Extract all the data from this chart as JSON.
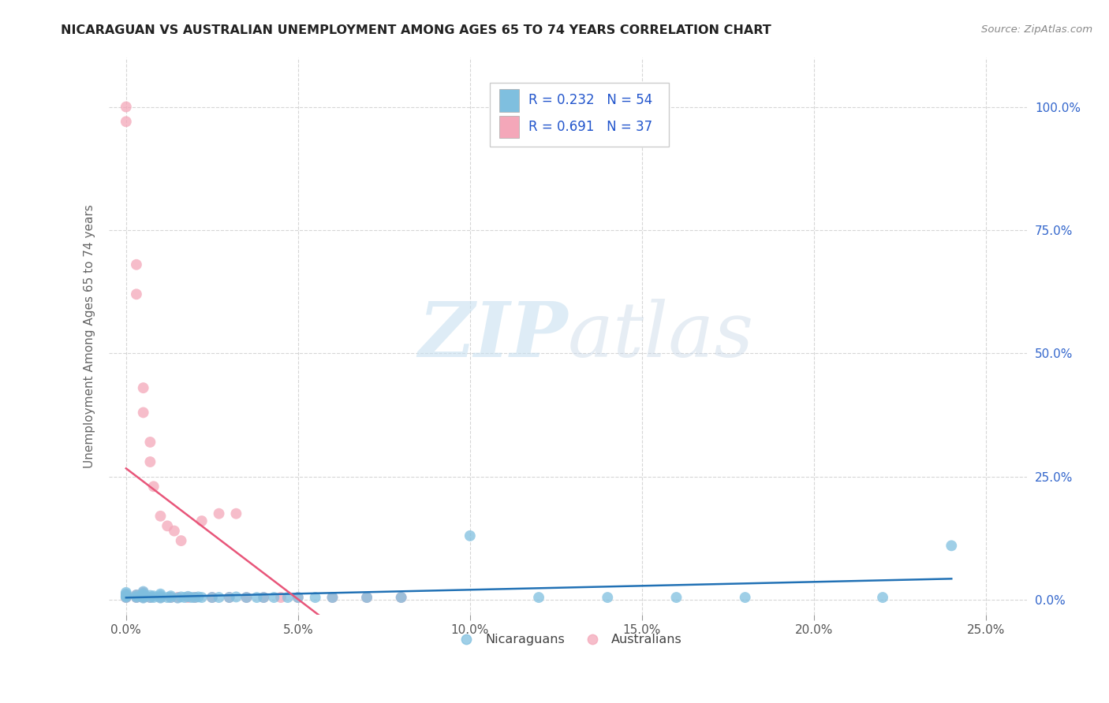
{
  "title": "NICARAGUAN VS AUSTRALIAN UNEMPLOYMENT AMONG AGES 65 TO 74 YEARS CORRELATION CHART",
  "source": "Source: ZipAtlas.com",
  "ylabel": "Unemployment Among Ages 65 to 74 years",
  "xlabel_ticks": [
    "0.0%",
    "5.0%",
    "10.0%",
    "15.0%",
    "20.0%",
    "25.0%"
  ],
  "xlabel_vals": [
    0.0,
    0.05,
    0.1,
    0.15,
    0.2,
    0.25
  ],
  "ylabel_ticks": [
    "0.0%",
    "25.0%",
    "50.0%",
    "75.0%",
    "100.0%"
  ],
  "ylabel_vals": [
    0.0,
    0.25,
    0.5,
    0.75,
    1.0
  ],
  "xlim": [
    -0.005,
    0.262
  ],
  "ylim": [
    -0.03,
    1.1
  ],
  "nicaraguan_color": "#7fbfdf",
  "australian_color": "#f4a7b9",
  "nicaraguan_line_color": "#2171b5",
  "australian_line_color": "#e8567a",
  "legend_R_nicaraguan": "0.232",
  "legend_N_nicaraguan": "54",
  "legend_R_australian": "0.691",
  "legend_N_australian": "37",
  "nicaraguan_x": [
    0.0,
    0.0,
    0.0,
    0.0,
    0.0,
    0.003,
    0.003,
    0.003,
    0.005,
    0.005,
    0.005,
    0.005,
    0.005,
    0.005,
    0.007,
    0.007,
    0.008,
    0.008,
    0.01,
    0.01,
    0.01,
    0.01,
    0.012,
    0.013,
    0.013,
    0.015,
    0.016,
    0.017,
    0.018,
    0.019,
    0.02,
    0.021,
    0.022,
    0.025,
    0.027,
    0.03,
    0.032,
    0.035,
    0.038,
    0.04,
    0.043,
    0.047,
    0.05,
    0.055,
    0.06,
    0.07,
    0.08,
    0.1,
    0.12,
    0.14,
    0.16,
    0.18,
    0.22,
    0.24
  ],
  "nicaraguan_y": [
    0.005,
    0.007,
    0.008,
    0.012,
    0.015,
    0.005,
    0.007,
    0.01,
    0.004,
    0.006,
    0.008,
    0.01,
    0.013,
    0.017,
    0.005,
    0.009,
    0.005,
    0.008,
    0.004,
    0.006,
    0.009,
    0.012,
    0.005,
    0.005,
    0.008,
    0.004,
    0.006,
    0.005,
    0.007,
    0.005,
    0.005,
    0.006,
    0.005,
    0.005,
    0.005,
    0.005,
    0.006,
    0.005,
    0.005,
    0.005,
    0.005,
    0.005,
    0.005,
    0.005,
    0.005,
    0.005,
    0.005,
    0.13,
    0.005,
    0.005,
    0.005,
    0.005,
    0.005,
    0.11
  ],
  "australian_x": [
    0.0,
    0.0,
    0.0,
    0.0,
    0.003,
    0.003,
    0.003,
    0.003,
    0.005,
    0.005,
    0.005,
    0.005,
    0.007,
    0.007,
    0.007,
    0.008,
    0.01,
    0.01,
    0.012,
    0.013,
    0.014,
    0.015,
    0.016,
    0.018,
    0.02,
    0.022,
    0.025,
    0.027,
    0.03,
    0.032,
    0.035,
    0.04,
    0.045,
    0.05,
    0.06,
    0.07,
    0.08
  ],
  "australian_y": [
    0.97,
    1.0,
    0.005,
    0.01,
    0.62,
    0.68,
    0.005,
    0.01,
    0.38,
    0.43,
    0.005,
    0.015,
    0.28,
    0.32,
    0.005,
    0.23,
    0.17,
    0.005,
    0.15,
    0.005,
    0.14,
    0.005,
    0.12,
    0.005,
    0.005,
    0.16,
    0.005,
    0.175,
    0.005,
    0.175,
    0.005,
    0.005,
    0.005,
    0.005,
    0.005,
    0.005,
    0.005
  ],
  "watermark_zip": "ZIP",
  "watermark_atlas": "atlas",
  "background_color": "#ffffff",
  "grid_color": "#cccccc"
}
